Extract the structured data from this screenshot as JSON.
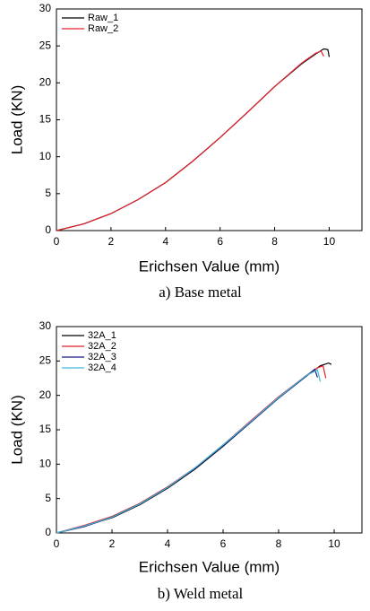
{
  "chart_data": [
    {
      "type": "line",
      "caption": "a)  Base  metal",
      "x_label": "Erichsen Value (mm)",
      "y_label": "Load (KN)",
      "xlim": [
        0,
        11.2
      ],
      "ylim": [
        0,
        30
      ],
      "xticks": [
        0,
        2,
        4,
        6,
        8,
        10
      ],
      "yticks": [
        0,
        5,
        10,
        15,
        20,
        25,
        30
      ],
      "legend": "upper-left",
      "series": [
        {
          "name": "Raw_1",
          "color": "#000000",
          "x": [
            0,
            1,
            2,
            3,
            4,
            5,
            6,
            7,
            8,
            9,
            9.5,
            9.8,
            9.95,
            10.0
          ],
          "values": [
            0,
            0.9,
            2.3,
            4.2,
            6.5,
            9.4,
            12.6,
            16.0,
            19.5,
            22.6,
            23.9,
            24.6,
            24.5,
            23.5
          ]
        },
        {
          "name": "Raw_2",
          "color": "#e0202a",
          "x": [
            0,
            1,
            2,
            3,
            4,
            5,
            6,
            7,
            8,
            9,
            9.5,
            9.7,
            9.8
          ],
          "values": [
            0,
            0.9,
            2.3,
            4.2,
            6.5,
            9.4,
            12.6,
            16.0,
            19.5,
            22.7,
            24.0,
            24.3,
            23.6
          ]
        }
      ]
    },
    {
      "type": "line",
      "caption": "b)  Weld  metal",
      "x_label": "Erichsen Value (mm)",
      "y_label": "Load (KN)",
      "xlim": [
        0,
        11
      ],
      "ylim": [
        0,
        30
      ],
      "xticks": [
        0,
        2,
        4,
        6,
        8,
        10
      ],
      "yticks": [
        0,
        5,
        10,
        15,
        20,
        25,
        30
      ],
      "legend": "upper-left",
      "series": [
        {
          "name": "32A_1",
          "color": "#000000",
          "x": [
            0,
            1,
            2,
            3,
            4,
            5,
            6,
            7,
            8,
            9,
            9.5,
            9.8,
            9.9
          ],
          "values": [
            0,
            1.0,
            2.2,
            4.1,
            6.5,
            9.3,
            12.6,
            16.1,
            19.6,
            22.8,
            24.3,
            24.7,
            24.5
          ]
        },
        {
          "name": "32A_2",
          "color": "#e0202a",
          "x": [
            0,
            1,
            2,
            3,
            4,
            5,
            6,
            7,
            8,
            9,
            9.4,
            9.6,
            9.7
          ],
          "values": [
            0,
            1.1,
            2.4,
            4.3,
            6.7,
            9.5,
            12.8,
            16.3,
            19.8,
            22.9,
            24.0,
            24.3,
            22.5
          ]
        },
        {
          "name": "32A_3",
          "color": "#1a1a80",
          "x": [
            0,
            1,
            2,
            3,
            4,
            5,
            6,
            7,
            8,
            9,
            9.3,
            9.4
          ],
          "values": [
            0,
            0.9,
            2.3,
            4.2,
            6.6,
            9.4,
            12.7,
            16.1,
            19.6,
            22.8,
            23.8,
            22.6
          ]
        },
        {
          "name": "32A_4",
          "color": "#3fb8d8",
          "x": [
            0,
            1,
            2,
            3,
            4,
            5,
            6,
            7,
            8,
            9,
            9.4,
            9.5
          ],
          "values": [
            0,
            1.0,
            2.3,
            4.2,
            6.6,
            9.5,
            12.8,
            16.2,
            19.7,
            22.9,
            23.7,
            22.0
          ]
        }
      ]
    }
  ]
}
